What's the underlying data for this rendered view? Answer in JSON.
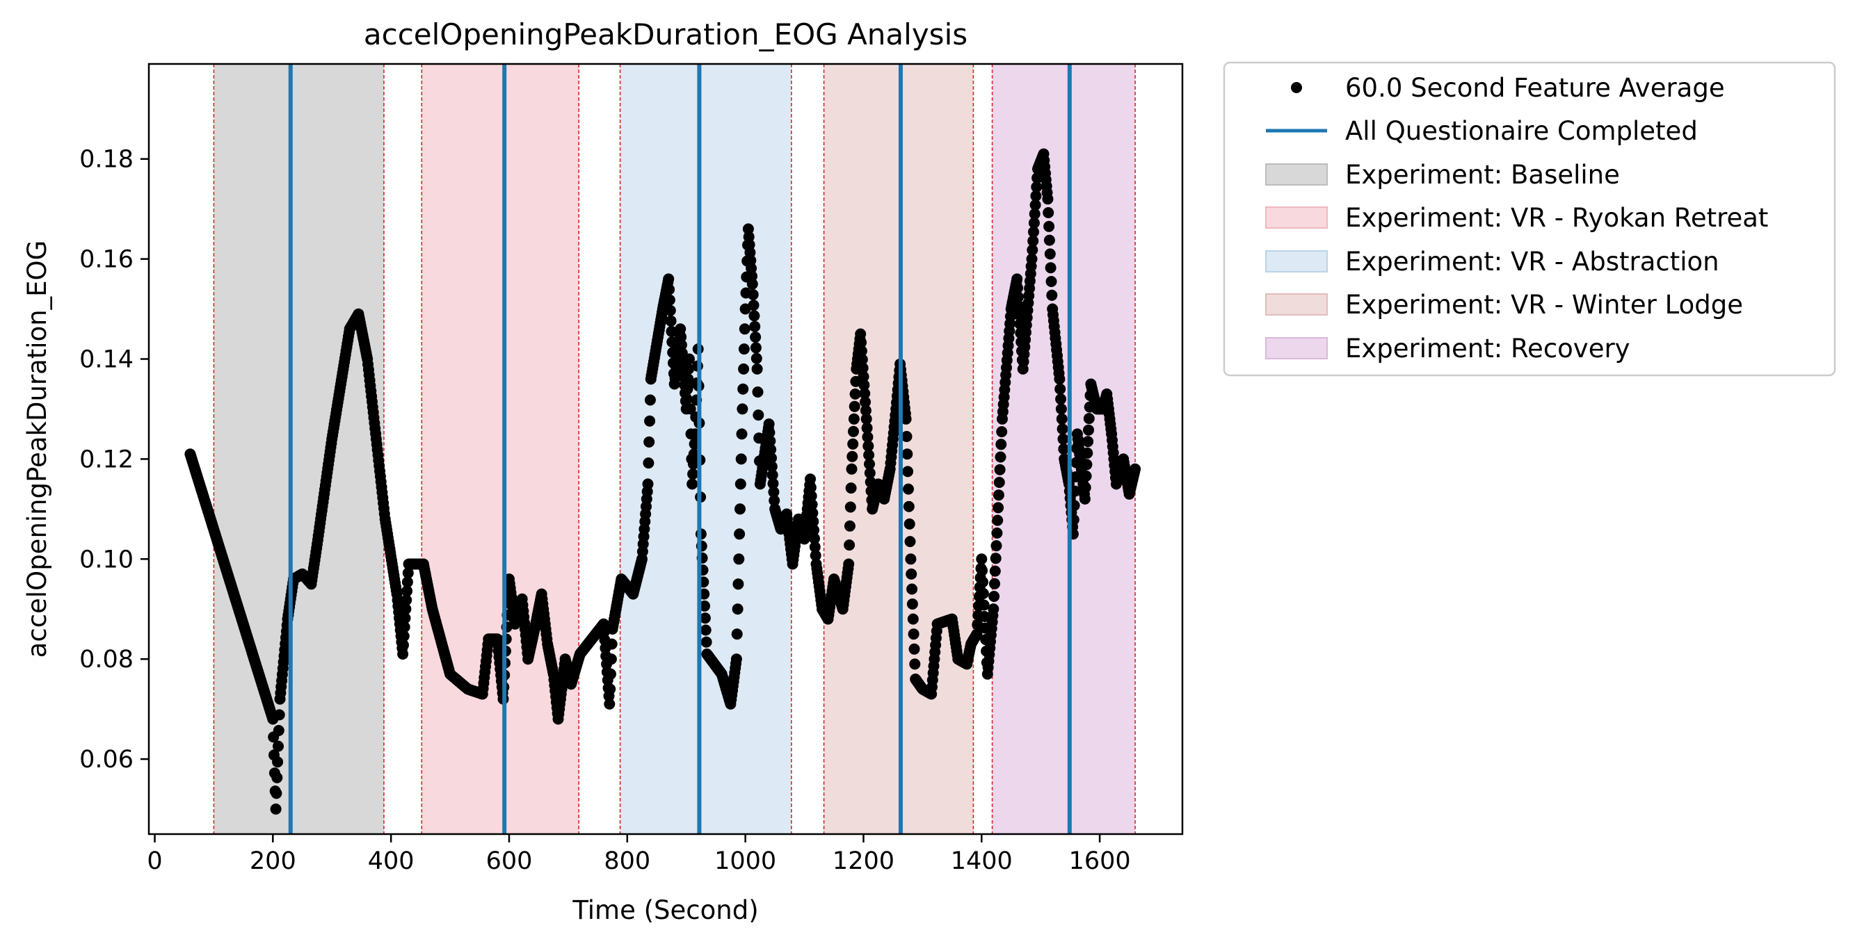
{
  "chart_data": {
    "type": "scatter",
    "title": "accelOpeningPeakDuration_EOG Analysis",
    "xlabel": "Time (Second)",
    "ylabel": "accelOpeningPeakDuration_EOG",
    "xlim": [
      -10,
      1740
    ],
    "ylim": [
      0.045,
      0.199
    ],
    "xticks": [
      0,
      200,
      400,
      600,
      800,
      1000,
      1200,
      1400,
      1600
    ],
    "yticks": [
      0.06,
      0.08,
      0.1,
      0.12,
      0.14,
      0.16,
      0.18
    ],
    "xtick_labels": [
      "0",
      "200",
      "400",
      "600",
      "800",
      "1000",
      "1200",
      "1400",
      "1600"
    ],
    "ytick_labels": [
      "0.06",
      "0.08",
      "0.10",
      "0.12",
      "0.14",
      "0.16",
      "0.18"
    ],
    "grid": false,
    "legend_position": "outside-right",
    "legend": [
      {
        "label": "60.0 Second Feature Average",
        "kind": "marker",
        "color": "#000000"
      },
      {
        "label": "All Questionaire Completed",
        "kind": "line",
        "color": "#1f77b4"
      },
      {
        "label": "Experiment: Baseline",
        "kind": "patch",
        "color": "#d8d8d8"
      },
      {
        "label": "Experiment: VR - Ryokan Retreat",
        "kind": "patch",
        "color": "#f8d9dd"
      },
      {
        "label": "Experiment: VR - Abstraction",
        "kind": "patch",
        "color": "#dde9f4"
      },
      {
        "label": "Experiment: VR - Winter Lodge",
        "kind": "patch",
        "color": "#f1dcdc"
      },
      {
        "label": "Experiment: Recovery",
        "kind": "patch",
        "color": "#ecd7ec"
      }
    ],
    "phases": [
      {
        "label": "Experiment: Baseline",
        "start": 100,
        "end": 388,
        "color": "#d8d8d8"
      },
      {
        "label": "Experiment: VR - Ryokan Retreat",
        "start": 452,
        "end": 718,
        "color": "#f8d9dd"
      },
      {
        "label": "Experiment: VR - Abstraction",
        "start": 788,
        "end": 1078,
        "color": "#dde9f4"
      },
      {
        "label": "Experiment: VR - Winter Lodge",
        "start": 1133,
        "end": 1386,
        "color": "#f1dcdc"
      },
      {
        "label": "Experiment: Recovery",
        "start": 1418,
        "end": 1660,
        "color": "#ecd7ec"
      }
    ],
    "boundary_line_color": "#d62728",
    "questionnaire_color": "#1f77b4",
    "questionnaire_times": [
      230,
      592,
      922,
      1263,
      1549
    ],
    "series_color": "#000000",
    "series_keypoints": [
      [
        60,
        0.121
      ],
      [
        200,
        0.068
      ],
      [
        205,
        0.05
      ],
      [
        212,
        0.072
      ],
      [
        225,
        0.088
      ],
      [
        235,
        0.096
      ],
      [
        250,
        0.097
      ],
      [
        265,
        0.095
      ],
      [
        275,
        0.103
      ],
      [
        300,
        0.124
      ],
      [
        330,
        0.146
      ],
      [
        345,
        0.149
      ],
      [
        360,
        0.14
      ],
      [
        390,
        0.108
      ],
      [
        410,
        0.093
      ],
      [
        420,
        0.081
      ],
      [
        430,
        0.099
      ],
      [
        440,
        0.099
      ],
      [
        455,
        0.099
      ],
      [
        470,
        0.09
      ],
      [
        500,
        0.077
      ],
      [
        530,
        0.074
      ],
      [
        555,
        0.073
      ],
      [
        565,
        0.084
      ],
      [
        580,
        0.084
      ],
      [
        590,
        0.072
      ],
      [
        600,
        0.096
      ],
      [
        610,
        0.087
      ],
      [
        622,
        0.092
      ],
      [
        632,
        0.08
      ],
      [
        645,
        0.087
      ],
      [
        655,
        0.093
      ],
      [
        665,
        0.083
      ],
      [
        675,
        0.077
      ],
      [
        683,
        0.068
      ],
      [
        695,
        0.08
      ],
      [
        705,
        0.075
      ],
      [
        720,
        0.081
      ],
      [
        740,
        0.084
      ],
      [
        760,
        0.087
      ],
      [
        770,
        0.071
      ],
      [
        775,
        0.086
      ],
      [
        790,
        0.096
      ],
      [
        810,
        0.093
      ],
      [
        825,
        0.1
      ],
      [
        835,
        0.115
      ],
      [
        840,
        0.136
      ],
      [
        860,
        0.15
      ],
      [
        870,
        0.156
      ],
      [
        880,
        0.135
      ],
      [
        890,
        0.146
      ],
      [
        900,
        0.13
      ],
      [
        905,
        0.14
      ],
      [
        910,
        0.115
      ],
      [
        915,
        0.125
      ],
      [
        920,
        0.142
      ],
      [
        925,
        0.105
      ],
      [
        935,
        0.081
      ],
      [
        960,
        0.077
      ],
      [
        975,
        0.071
      ],
      [
        985,
        0.08
      ],
      [
        990,
        0.105
      ],
      [
        995,
        0.13
      ],
      [
        1000,
        0.15
      ],
      [
        1005,
        0.166
      ],
      [
        1012,
        0.155
      ],
      [
        1020,
        0.138
      ],
      [
        1025,
        0.115
      ],
      [
        1040,
        0.127
      ],
      [
        1050,
        0.11
      ],
      [
        1060,
        0.106
      ],
      [
        1070,
        0.109
      ],
      [
        1080,
        0.099
      ],
      [
        1090,
        0.108
      ],
      [
        1100,
        0.104
      ],
      [
        1110,
        0.116
      ],
      [
        1120,
        0.099
      ],
      [
        1130,
        0.09
      ],
      [
        1140,
        0.088
      ],
      [
        1150,
        0.096
      ],
      [
        1165,
        0.09
      ],
      [
        1175,
        0.099
      ],
      [
        1180,
        0.118
      ],
      [
        1188,
        0.138
      ],
      [
        1195,
        0.145
      ],
      [
        1205,
        0.128
      ],
      [
        1215,
        0.11
      ],
      [
        1225,
        0.115
      ],
      [
        1235,
        0.112
      ],
      [
        1245,
        0.118
      ],
      [
        1255,
        0.13
      ],
      [
        1262,
        0.139
      ],
      [
        1272,
        0.128
      ],
      [
        1280,
        0.1
      ],
      [
        1288,
        0.076
      ],
      [
        1300,
        0.074
      ],
      [
        1315,
        0.073
      ],
      [
        1325,
        0.087
      ],
      [
        1350,
        0.088
      ],
      [
        1360,
        0.08
      ],
      [
        1375,
        0.079
      ],
      [
        1382,
        0.083
      ],
      [
        1392,
        0.085
      ],
      [
        1400,
        0.1
      ],
      [
        1410,
        0.077
      ],
      [
        1420,
        0.09
      ],
      [
        1435,
        0.128
      ],
      [
        1450,
        0.15
      ],
      [
        1460,
        0.156
      ],
      [
        1470,
        0.138
      ],
      [
        1485,
        0.16
      ],
      [
        1495,
        0.178
      ],
      [
        1505,
        0.181
      ],
      [
        1512,
        0.172
      ],
      [
        1520,
        0.15
      ],
      [
        1532,
        0.136
      ],
      [
        1540,
        0.12
      ],
      [
        1548,
        0.115
      ],
      [
        1555,
        0.105
      ],
      [
        1562,
        0.125
      ],
      [
        1575,
        0.112
      ],
      [
        1585,
        0.135
      ],
      [
        1595,
        0.13
      ],
      [
        1605,
        0.13
      ],
      [
        1612,
        0.133
      ],
      [
        1620,
        0.125
      ],
      [
        1628,
        0.115
      ],
      [
        1640,
        0.12
      ],
      [
        1650,
        0.113
      ],
      [
        1660,
        0.118
      ]
    ]
  }
}
